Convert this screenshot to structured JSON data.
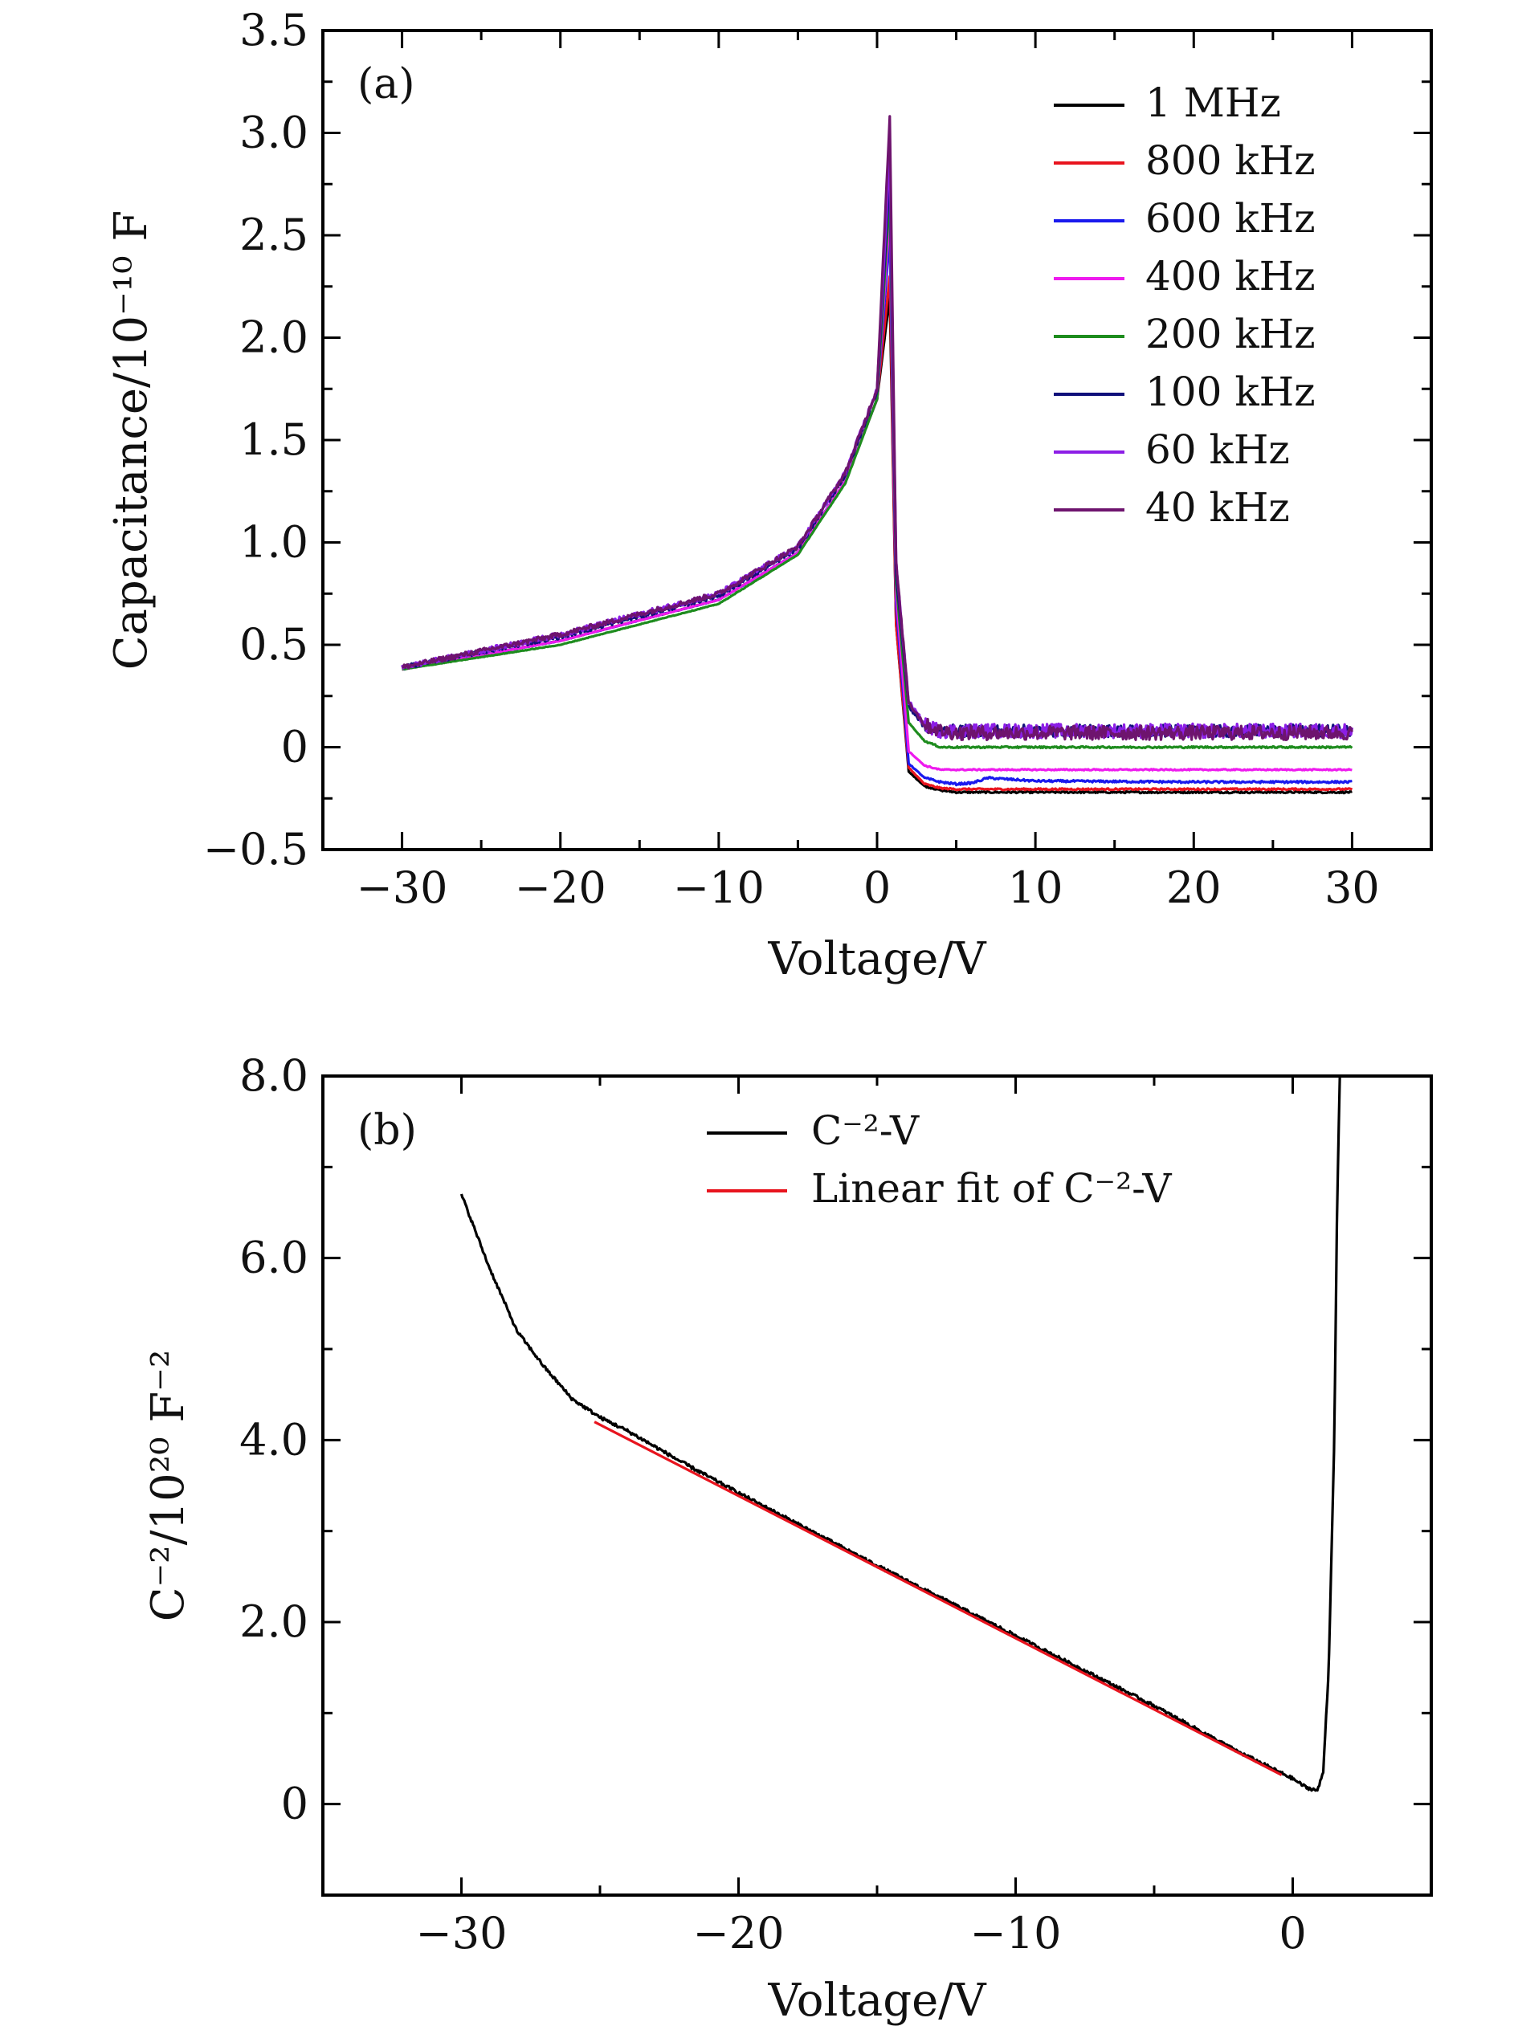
{
  "chart_data": [
    {
      "panel": "(a)",
      "type": "line",
      "xlabel": "Voltage/V",
      "ylabel": "Capacitance/10⁻¹⁰ F",
      "xlim": [
        -35,
        35
      ],
      "ylim": [
        -0.5,
        3.5
      ],
      "xticks": [
        -30,
        -20,
        -10,
        0,
        10,
        20,
        30
      ],
      "xtick_labels": [
        "−30",
        "−20",
        "−10",
        "0",
        "10",
        "20",
        "30"
      ],
      "yticks": [
        -0.5,
        0,
        0.5,
        1.0,
        1.5,
        2.0,
        2.5,
        3.0,
        3.5
      ],
      "ytick_labels": [
        "−0.5",
        "0",
        "0.5",
        "1.0",
        "1.5",
        "2.0",
        "2.5",
        "3.0",
        "3.5"
      ],
      "legend_position": "top-right",
      "series": [
        {
          "name": "1 MHz",
          "color": "#000000",
          "plateau": -0.22,
          "peak": 2.2,
          "noise": 0.004,
          "x": [
            -30,
            -20,
            -10,
            -5,
            -2,
            0,
            0.8,
            1.2,
            2,
            3,
            4,
            5,
            10,
            20,
            30
          ],
          "y": [
            0.38,
            0.52,
            0.72,
            0.95,
            1.3,
            1.7,
            2.2,
            0.6,
            -0.12,
            -0.19,
            -0.21,
            -0.22,
            -0.22,
            -0.22,
            -0.22
          ]
        },
        {
          "name": "800 kHz",
          "color": "#e8141e",
          "plateau": -0.205,
          "peak": 2.3,
          "noise": 0.004,
          "x": [
            -30,
            -20,
            -10,
            -5,
            -2,
            0,
            0.8,
            1.2,
            2,
            3,
            4,
            5,
            10,
            20,
            30
          ],
          "y": [
            0.38,
            0.52,
            0.72,
            0.95,
            1.3,
            1.7,
            2.3,
            0.6,
            -0.1,
            -0.18,
            -0.2,
            -0.205,
            -0.205,
            -0.205,
            -0.205
          ]
        },
        {
          "name": "600 kHz",
          "color": "#1a1aee",
          "plateau": -0.17,
          "peak": 2.5,
          "noise": 0.005,
          "x": [
            -30,
            -20,
            -10,
            -5,
            -2,
            0,
            0.8,
            1.2,
            2,
            3,
            4,
            5,
            6,
            7,
            10,
            20,
            30
          ],
          "y": [
            0.38,
            0.52,
            0.72,
            0.95,
            1.3,
            1.7,
            2.5,
            0.7,
            -0.08,
            -0.15,
            -0.17,
            -0.18,
            -0.175,
            -0.15,
            -0.165,
            -0.17,
            -0.17
          ]
        },
        {
          "name": "400 kHz",
          "color": "#ee1aee",
          "plateau": -0.11,
          "peak": 2.6,
          "noise": 0.003,
          "x": [
            -30,
            -20,
            -10,
            -5,
            -2,
            0,
            0.8,
            1.2,
            2,
            3,
            4,
            5,
            10,
            20,
            30
          ],
          "y": [
            0.38,
            0.52,
            0.72,
            0.95,
            1.3,
            1.7,
            2.6,
            0.75,
            -0.02,
            -0.09,
            -0.11,
            -0.11,
            -0.11,
            -0.11,
            -0.11
          ]
        },
        {
          "name": "200 kHz",
          "color": "#1e8c1e",
          "plateau": 0.0,
          "peak": 2.7,
          "noise": 0.004,
          "x": [
            -30,
            -20,
            -10,
            -5,
            -2,
            0,
            0.8,
            1.2,
            2,
            3,
            4,
            5,
            10,
            20,
            30
          ],
          "y": [
            0.38,
            0.5,
            0.7,
            0.94,
            1.29,
            1.7,
            2.7,
            0.8,
            0.12,
            0.03,
            0.0,
            0.0,
            0.0,
            0.0,
            0.0
          ]
        },
        {
          "name": "100 kHz",
          "color": "#10107a",
          "plateau": 0.08,
          "peak": 2.8,
          "noise": 0.03,
          "x": [
            -30,
            -20,
            -10,
            -5,
            -2,
            0,
            0.8,
            1.2,
            2,
            3,
            4,
            5,
            10,
            20,
            30
          ],
          "y": [
            0.39,
            0.54,
            0.74,
            0.97,
            1.33,
            1.74,
            2.8,
            0.85,
            0.2,
            0.1,
            0.08,
            0.08,
            0.08,
            0.08,
            0.08
          ]
        },
        {
          "name": "60 kHz",
          "color": "#8c1ee6",
          "plateau": 0.08,
          "peak": 2.9,
          "noise": 0.035,
          "x": [
            -30,
            -20,
            -10,
            -5,
            -2,
            0,
            0.8,
            1.2,
            2,
            3,
            4,
            5,
            10,
            20,
            30
          ],
          "y": [
            0.39,
            0.55,
            0.75,
            0.98,
            1.34,
            1.75,
            2.9,
            0.9,
            0.22,
            0.11,
            0.08,
            0.08,
            0.08,
            0.08,
            0.08
          ]
        },
        {
          "name": "40 kHz",
          "color": "#6e146e",
          "plateau": 0.07,
          "peak": 3.08,
          "noise": 0.035,
          "x": [
            -30,
            -20,
            -10,
            -5,
            -2,
            0,
            0.8,
            1.2,
            2,
            3,
            4,
            5,
            10,
            20,
            30
          ],
          "y": [
            0.39,
            0.55,
            0.75,
            0.98,
            1.34,
            1.75,
            3.08,
            0.9,
            0.22,
            0.11,
            0.08,
            0.07,
            0.07,
            0.07,
            0.07
          ]
        }
      ]
    },
    {
      "panel": "(b)",
      "type": "line",
      "xlabel": "Voltage/V",
      "ylabel": "C⁻²/10²⁰ F⁻²",
      "xlim": [
        -35,
        5
      ],
      "ylim": [
        -1,
        8
      ],
      "xticks": [
        -30,
        -20,
        -10,
        0
      ],
      "xtick_labels": [
        "−30",
        "−20",
        "−10",
        "0"
      ],
      "yticks": [
        0,
        2,
        4,
        6,
        8
      ],
      "ytick_labels": [
        "0",
        "2.0",
        "4.0",
        "6.0",
        "8.0"
      ],
      "legend_position": "top-center",
      "series": [
        {
          "name": "C⁻²-V",
          "color": "#000000",
          "noise": 0.05,
          "x": [
            -30,
            -29,
            -28,
            -27,
            -26,
            -25,
            -24,
            -22,
            -20,
            -15,
            -10,
            -5,
            -2,
            0,
            0.5,
            0.9,
            1.1,
            1.3,
            1.5,
            1.6,
            1.7
          ],
          "y": [
            6.7,
            5.9,
            5.2,
            4.8,
            4.45,
            4.25,
            4.1,
            3.75,
            3.42,
            2.62,
            1.85,
            1.08,
            0.58,
            0.28,
            0.18,
            0.15,
            0.35,
            1.5,
            4.0,
            6.5,
            8.0
          ]
        },
        {
          "name": "Linear fit of C⁻²-V",
          "color": "#e8141e",
          "noise": 0,
          "x": [
            -25.2,
            -0.4
          ],
          "y": [
            4.2,
            0.32
          ]
        }
      ]
    }
  ]
}
